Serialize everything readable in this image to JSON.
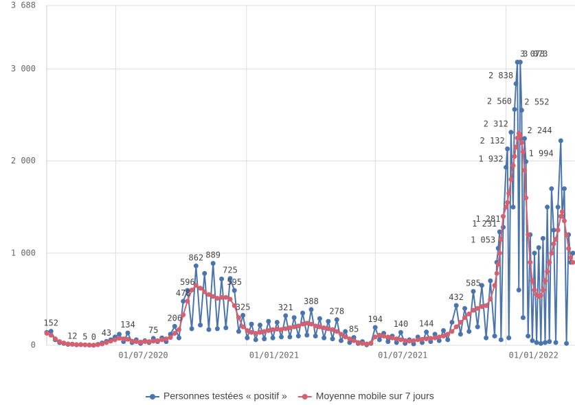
{
  "chart_data": {
    "type": "line",
    "x": [
      "2020-03-26",
      "2020-04-01",
      "2020-04-07",
      "2020-04-13",
      "2020-04-19",
      "2020-04-25",
      "2020-05-01",
      "2020-05-07",
      "2020-05-13",
      "2020-05-19",
      "2020-05-25",
      "2020-05-31",
      "2020-06-06",
      "2020-06-12",
      "2020-06-18",
      "2020-06-24",
      "2020-06-30",
      "2020-07-06",
      "2020-07-12",
      "2020-07-18",
      "2020-07-24",
      "2020-07-30",
      "2020-08-05",
      "2020-08-11",
      "2020-08-17",
      "2020-08-23",
      "2020-08-29",
      "2020-09-04",
      "2020-09-10",
      "2020-09-16",
      "2020-09-22",
      "2020-09-28",
      "2020-10-04",
      "2020-10-10",
      "2020-10-16",
      "2020-10-22",
      "2020-10-28",
      "2020-11-03",
      "2020-11-09",
      "2020-11-15",
      "2020-11-21",
      "2020-11-27",
      "2020-12-03",
      "2020-12-09",
      "2020-12-15",
      "2020-12-21",
      "2020-12-27",
      "2021-01-02",
      "2021-01-08",
      "2021-01-14",
      "2021-01-20",
      "2021-01-26",
      "2021-02-01",
      "2021-02-07",
      "2021-02-13",
      "2021-02-19",
      "2021-02-25",
      "2021-03-03",
      "2021-03-09",
      "2021-03-15",
      "2021-03-21",
      "2021-03-27",
      "2021-04-02",
      "2021-04-08",
      "2021-04-14",
      "2021-04-20",
      "2021-04-26",
      "2021-05-02",
      "2021-05-08",
      "2021-05-14",
      "2021-05-20",
      "2021-05-26",
      "2021-06-01",
      "2021-06-07",
      "2021-06-13",
      "2021-06-19",
      "2021-06-25",
      "2021-07-01",
      "2021-07-07",
      "2021-07-13",
      "2021-07-19",
      "2021-07-25",
      "2021-07-31",
      "2021-08-06",
      "2021-08-12",
      "2021-08-18",
      "2021-08-24",
      "2021-08-30",
      "2021-09-05",
      "2021-09-11",
      "2021-09-17",
      "2021-09-23",
      "2021-09-29",
      "2021-10-05",
      "2021-10-11",
      "2021-10-17",
      "2021-10-23",
      "2021-10-29",
      "2021-11-04",
      "2021-11-10",
      "2021-11-16",
      "2021-11-22",
      "2021-11-28",
      "2021-12-04",
      "2021-12-10",
      "2021-12-16",
      "2021-12-19",
      "2021-12-21",
      "2021-12-23",
      "2021-12-25",
      "2021-12-28",
      "2022-01-01",
      "2022-01-03",
      "2022-01-05",
      "2022-01-08",
      "2022-01-11",
      "2022-01-13",
      "2022-01-15",
      "2022-01-17",
      "2022-01-19",
      "2022-01-21",
      "2022-01-23",
      "2022-01-25",
      "2022-01-27",
      "2022-01-29",
      "2022-02-01",
      "2022-02-04",
      "2022-02-07",
      "2022-02-10",
      "2022-02-13",
      "2022-02-16",
      "2022-02-19",
      "2022-02-22",
      "2022-02-25",
      "2022-02-28",
      "2022-03-03",
      "2022-03-06",
      "2022-03-09",
      "2022-03-12",
      "2022-03-15",
      "2022-03-19",
      "2022-03-21",
      "2022-03-24",
      "2022-03-27",
      "2022-03-30",
      "2022-04-02",
      "2022-04-05"
    ],
    "series": [
      {
        "name": "Personnes testées « positif »",
        "color": "#4a74ab",
        "values": [
          140,
          152,
          60,
          30,
          20,
          10,
          12,
          5,
          8,
          5,
          2,
          0,
          10,
          25,
          43,
          60,
          90,
          120,
          40,
          134,
          30,
          60,
          20,
          50,
          30,
          75,
          40,
          80,
          40,
          120,
          206,
          80,
          478,
          596,
          180,
          862,
          220,
          780,
          170,
          889,
          180,
          720,
          190,
          725,
          595,
          150,
          325,
          80,
          230,
          60,
          220,
          70,
          260,
          80,
          250,
          90,
          321,
          90,
          300,
          100,
          350,
          110,
          388,
          100,
          290,
          80,
          260,
          70,
          278,
          50,
          150,
          30,
          85,
          20,
          40,
          5,
          20,
          194,
          60,
          130,
          40,
          100,
          30,
          140,
          20,
          60,
          15,
          90,
          30,
          144,
          40,
          120,
          50,
          160,
          60,
          250,
          432,
          120,
          400,
          150,
          585,
          200,
          650,
          80,
          700,
          100,
          900,
          1053,
          1231,
          60,
          1281,
          1932,
          2132,
          80,
          2312,
          1500,
          2560,
          2838,
          3073,
          600,
          3073,
          2552,
          300,
          2244,
          1994,
          100,
          1200,
          50,
          1000,
          30,
          1060,
          20,
          1160,
          30,
          1500,
          40,
          1700,
          1250,
          30,
          1500,
          2220,
          1400,
          1700,
          20,
          1200,
          900,
          1000
        ],
        "value_labels": [
          null,
          "152",
          null,
          null,
          null,
          null,
          "12",
          null,
          null,
          "5",
          null,
          "0",
          null,
          null,
          "43",
          null,
          null,
          null,
          null,
          "134",
          null,
          null,
          null,
          null,
          null,
          "75",
          null,
          null,
          null,
          null,
          "206",
          null,
          "478",
          "596",
          null,
          "862",
          null,
          null,
          null,
          "889",
          null,
          null,
          null,
          "725",
          "595",
          null,
          "325",
          null,
          null,
          null,
          null,
          null,
          null,
          null,
          null,
          null,
          "321",
          null,
          null,
          null,
          null,
          null,
          "388",
          null,
          null,
          null,
          null,
          null,
          "278",
          null,
          null,
          null,
          "85",
          null,
          null,
          null,
          null,
          "194",
          null,
          null,
          null,
          null,
          null,
          "140",
          null,
          null,
          null,
          null,
          null,
          "144",
          null,
          null,
          null,
          null,
          null,
          null,
          "432",
          null,
          null,
          null,
          "585",
          null,
          null,
          null,
          null,
          null,
          null,
          "1 053",
          "1 231",
          null,
          "1 281",
          "1 932",
          "2 132",
          null,
          "2 312",
          null,
          "2 560",
          "2 838",
          "3 073",
          null,
          "3 073",
          "2 552",
          null,
          "2 244",
          "1 994",
          null,
          null,
          null,
          null,
          null,
          null,
          null,
          null,
          null,
          null,
          null,
          null,
          null,
          null,
          null,
          null,
          null,
          null,
          null,
          null,
          null,
          null
        ]
      },
      {
        "name": "Moyenne mobile sur 7 jours",
        "color": "#d5606f",
        "values": [
          130,
          110,
          70,
          40,
          25,
          15,
          10,
          8,
          6,
          5,
          3,
          2,
          6,
          15,
          30,
          45,
          60,
          75,
          70,
          65,
          45,
          40,
          35,
          40,
          40,
          45,
          50,
          60,
          70,
          85,
          130,
          170,
          330,
          480,
          600,
          650,
          620,
          580,
          550,
          530,
          510,
          520,
          520,
          500,
          430,
          300,
          200,
          160,
          140,
          130,
          140,
          150,
          160,
          170,
          175,
          170,
          180,
          190,
          200,
          210,
          230,
          240,
          230,
          210,
          200,
          190,
          180,
          170,
          150,
          120,
          90,
          70,
          50,
          30,
          20,
          15,
          25,
          90,
          110,
          100,
          90,
          80,
          70,
          60,
          50,
          45,
          50,
          60,
          65,
          70,
          75,
          80,
          90,
          100,
          120,
          150,
          200,
          250,
          300,
          340,
          380,
          400,
          420,
          430,
          500,
          650,
          780,
          880,
          1000,
          1150,
          1400,
          1500,
          1550,
          1650,
          1800,
          1950,
          2050,
          2150,
          2250,
          2300,
          2270,
          2200,
          2100,
          1900,
          1600,
          1200,
          900,
          700,
          600,
          550,
          530,
          540,
          600,
          700,
          800,
          900,
          1000,
          1100,
          1150,
          1250,
          1400,
          1450,
          1350,
          1200,
          1050,
          950,
          900
        ]
      }
    ],
    "xlim": [
      "2020-03-26",
      "2022-04-08"
    ],
    "xticks": [
      {
        "value": "2020-07-01",
        "label": "01/07/2020"
      },
      {
        "value": "2021-01-01",
        "label": "01/01/2021"
      },
      {
        "value": "2021-07-01",
        "label": "01/07/2021"
      },
      {
        "value": "2022-01-01",
        "label": "01/01/2022"
      }
    ],
    "ylim": [
      0,
      3688
    ],
    "yticks": [
      0,
      {
        "value": 1000,
        "label": "1 000"
      },
      {
        "value": 2000,
        "label": "2 000"
      },
      {
        "value": 3000,
        "label": "3 000"
      },
      {
        "value": 3688,
        "label": "3 688"
      }
    ],
    "grid": true,
    "legend": "bottom"
  }
}
